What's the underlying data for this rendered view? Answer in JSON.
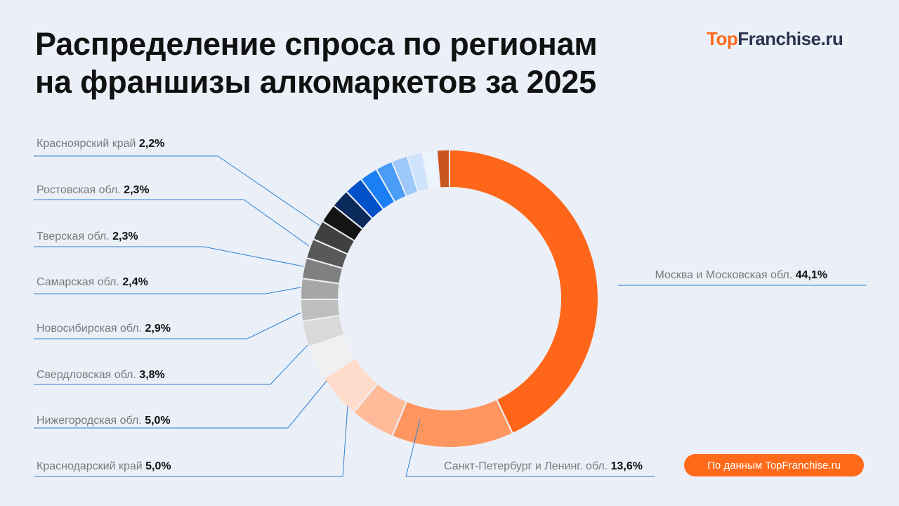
{
  "title": {
    "line1": "Распределение спроса по регионам",
    "line2": "на франшизы алкомаркетов за 2025"
  },
  "logo": {
    "part1": "Top",
    "part2": "Franchise",
    "part3": ".ru"
  },
  "source_badge": "По данным TopFranchise.ru",
  "chart_data": {
    "type": "pie",
    "variant": "donut",
    "title": "Распределение спроса по регионам на франшизы алкомаркетов за 2025",
    "unit": "%",
    "slices": [
      {
        "label": "Москва и Московская обл.",
        "value": 44.1,
        "display": "44,1%",
        "color": "#ff661a"
      },
      {
        "label": "Санкт-Петербург и Ленинг. обл.",
        "value": 13.6,
        "display": "13,6%",
        "color": "#ff9660"
      },
      {
        "label": "Краснодарский край",
        "value": 5.0,
        "display": "5,0%",
        "color": "#ffbb99"
      },
      {
        "label": "Нижегородская обл.",
        "value": 5.0,
        "display": "5,0%",
        "color": "#ffdccc"
      },
      {
        "label": "Свердловская обл.",
        "value": 3.8,
        "display": "3,8%",
        "color": "#f0f0f0"
      },
      {
        "label": "Новосибирская обл.",
        "value": 2.9,
        "display": "2,9%",
        "color": "#d9d9d9"
      },
      {
        "label": "Самарская обл.",
        "value": 2.4,
        "display": "2,4%",
        "color": "#bfbfbf"
      },
      {
        "label": "Тверская обл.",
        "value": 2.3,
        "display": "2,3%",
        "color": "#a6a6a6"
      },
      {
        "label": "Ростовская обл.",
        "value": 2.3,
        "display": "2,3%",
        "color": "#808080"
      },
      {
        "label": "Красноярский край",
        "value": 2.2,
        "display": "2,2%",
        "color": "#595959"
      },
      {
        "label": "",
        "value": 2.2,
        "display": "",
        "color": "#404040"
      },
      {
        "label": "",
        "value": 2.1,
        "display": "",
        "color": "#141414"
      },
      {
        "label": "",
        "value": 2.1,
        "display": "",
        "color": "#0a2a5c"
      },
      {
        "label": "",
        "value": 2.1,
        "display": "",
        "color": "#0050c8"
      },
      {
        "label": "",
        "value": 2.0,
        "display": "",
        "color": "#1a7ff5"
      },
      {
        "label": "",
        "value": 1.9,
        "display": "",
        "color": "#4a9cf7"
      },
      {
        "label": "",
        "value": 1.8,
        "display": "",
        "color": "#9cc8fa"
      },
      {
        "label": "",
        "value": 1.7,
        "display": "",
        "color": "#cfe3fc"
      },
      {
        "label": "",
        "value": 1.6,
        "display": "",
        "color": "#ecf4fe"
      },
      {
        "label": "",
        "value": 1.4,
        "display": "",
        "color": "#c8561e"
      }
    ]
  }
}
